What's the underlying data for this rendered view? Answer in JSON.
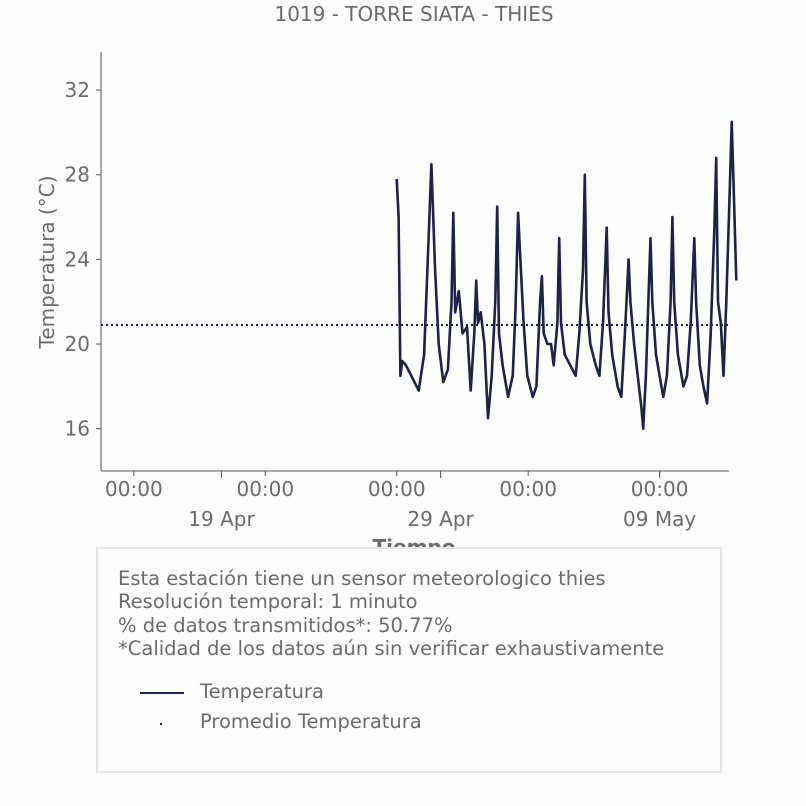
{
  "chart_data": {
    "type": "line",
    "title": "1019 - TORRE SIATA - THIES",
    "xlabel": "Tiempo",
    "ylabel": "Temperatura (°C)",
    "ylim": [
      14,
      33.8
    ],
    "yticks": [
      16,
      20,
      24,
      28,
      32
    ],
    "x_range_days": [
      "2018-04-13 12:00",
      "2018-05-12 04:00"
    ],
    "time_tick_labels": [
      "00:00",
      "00:00",
      "00:00",
      "00:00",
      "00:00"
    ],
    "time_tick_days": [
      "2018-04-15",
      "2018-04-21",
      "2018-04-27",
      "2018-05-03",
      "2018-05-09"
    ],
    "date_tick_labels": [
      "19 Apr",
      "29 Apr",
      "09 May"
    ],
    "date_tick_days": [
      "2018-04-19",
      "2018-04-29",
      "2018-05-09"
    ],
    "grid": false,
    "series": [
      {
        "name": "Temperatura",
        "color": "#1f2148",
        "style": "solid",
        "points": [
          [
            "2018-04-27 00:00",
            27.8
          ],
          [
            "2018-04-27 02:00",
            26.0
          ],
          [
            "2018-04-27 04:00",
            18.5
          ],
          [
            "2018-04-27 06:00",
            19.2
          ],
          [
            "2018-04-27 10:00",
            19.0
          ],
          [
            "2018-04-27 16:00",
            18.5
          ],
          [
            "2018-04-28 00:00",
            17.8
          ],
          [
            "2018-04-28 06:00",
            19.5
          ],
          [
            "2018-04-28 10:00",
            24.0
          ],
          [
            "2018-04-28 14:00",
            28.5
          ],
          [
            "2018-04-28 18:00",
            23.5
          ],
          [
            "2018-04-28 22:00",
            20.0
          ],
          [
            "2018-04-29 03:00",
            18.2
          ],
          [
            "2018-04-29 08:00",
            18.8
          ],
          [
            "2018-04-29 12:00",
            22.0
          ],
          [
            "2018-04-29 14:00",
            26.2
          ],
          [
            "2018-04-29 16:00",
            21.5
          ],
          [
            "2018-04-29 20:00",
            22.5
          ],
          [
            "2018-04-30 00:00",
            20.5
          ],
          [
            "2018-04-30 05:00",
            20.8
          ],
          [
            "2018-04-30 09:00",
            17.8
          ],
          [
            "2018-04-30 13:00",
            20.5
          ],
          [
            "2018-04-30 15:00",
            23.0
          ],
          [
            "2018-04-30 17:00",
            21.0
          ],
          [
            "2018-04-30 20:00",
            21.5
          ],
          [
            "2018-05-01 00:00",
            20.0
          ],
          [
            "2018-05-01 04:00",
            16.5
          ],
          [
            "2018-05-01 08:00",
            18.5
          ],
          [
            "2018-05-01 12:00",
            22.0
          ],
          [
            "2018-05-01 14:00",
            26.5
          ],
          [
            "2018-05-01 16:00",
            20.5
          ],
          [
            "2018-05-01 20:00",
            19.0
          ],
          [
            "2018-05-02 02:00",
            17.5
          ],
          [
            "2018-05-02 07:00",
            18.5
          ],
          [
            "2018-05-02 10:00",
            21.5
          ],
          [
            "2018-05-02 13:00",
            26.2
          ],
          [
            "2018-05-02 16:00",
            23.5
          ],
          [
            "2018-05-02 19:00",
            21.0
          ],
          [
            "2018-05-02 23:00",
            18.5
          ],
          [
            "2018-05-03 05:00",
            17.5
          ],
          [
            "2018-05-03 09:00",
            18.0
          ],
          [
            "2018-05-03 13:00",
            22.0
          ],
          [
            "2018-05-03 15:00",
            23.2
          ],
          [
            "2018-05-03 17:00",
            20.5
          ],
          [
            "2018-05-03 21:00",
            20.0
          ],
          [
            "2018-05-04 01:00",
            20.0
          ],
          [
            "2018-05-04 04:00",
            19.0
          ],
          [
            "2018-05-04 08:00",
            21.0
          ],
          [
            "2018-05-04 10:00",
            25.0
          ],
          [
            "2018-05-04 12:00",
            21.0
          ],
          [
            "2018-05-04 16:00",
            19.5
          ],
          [
            "2018-05-04 22:00",
            19.0
          ],
          [
            "2018-05-05 04:00",
            18.5
          ],
          [
            "2018-05-05 08:00",
            20.5
          ],
          [
            "2018-05-05 12:00",
            23.5
          ],
          [
            "2018-05-05 14:00",
            28.0
          ],
          [
            "2018-05-05 16:00",
            22.0
          ],
          [
            "2018-05-05 20:00",
            20.0
          ],
          [
            "2018-05-06 02:00",
            19.0
          ],
          [
            "2018-05-06 06:00",
            18.5
          ],
          [
            "2018-05-06 10:00",
            21.0
          ],
          [
            "2018-05-06 14:00",
            25.5
          ],
          [
            "2018-05-06 16:00",
            21.5
          ],
          [
            "2018-05-06 20:00",
            19.5
          ],
          [
            "2018-05-07 02:00",
            18.0
          ],
          [
            "2018-05-07 06:00",
            17.5
          ],
          [
            "2018-05-07 10:00",
            20.5
          ],
          [
            "2018-05-07 14:00",
            24.0
          ],
          [
            "2018-05-07 16:00",
            22.0
          ],
          [
            "2018-05-07 20:00",
            20.0
          ],
          [
            "2018-05-08 00:00",
            18.5
          ],
          [
            "2018-05-08 04:00",
            17.0
          ],
          [
            "2018-05-08 06:00",
            16.0
          ],
          [
            "2018-05-08 09:00",
            18.5
          ],
          [
            "2018-05-08 12:00",
            22.5
          ],
          [
            "2018-05-08 14:00",
            25.0
          ],
          [
            "2018-05-08 16:00",
            22.0
          ],
          [
            "2018-05-08 20:00",
            19.5
          ],
          [
            "2018-05-09 00:00",
            18.5
          ],
          [
            "2018-05-09 04:00",
            17.5
          ],
          [
            "2018-05-09 08:00",
            18.5
          ],
          [
            "2018-05-09 12:00",
            22.0
          ],
          [
            "2018-05-09 14:00",
            26.0
          ],
          [
            "2018-05-09 16:00",
            22.0
          ],
          [
            "2018-05-09 20:00",
            19.5
          ],
          [
            "2018-05-10 02:00",
            18.0
          ],
          [
            "2018-05-10 06:00",
            18.5
          ],
          [
            "2018-05-10 10:00",
            21.0
          ],
          [
            "2018-05-10 14:00",
            25.0
          ],
          [
            "2018-05-10 16:00",
            22.0
          ],
          [
            "2018-05-10 20:00",
            19.0
          ],
          [
            "2018-05-11 00:00",
            18.0
          ],
          [
            "2018-05-11 04:00",
            17.2
          ],
          [
            "2018-05-11 08:00",
            20.5
          ],
          [
            "2018-05-11 12:00",
            25.5
          ],
          [
            "2018-05-11 14:00",
            28.8
          ],
          [
            "2018-05-11 16:00",
            22.0
          ],
          [
            "2018-05-11 19:00",
            21.0
          ],
          [
            "2018-05-11 22:00",
            18.5
          ],
          [
            "2018-05-12 01:00",
            22.0
          ],
          [
            "2018-05-12 05:00",
            27.5
          ],
          [
            "2018-05-12 07:00",
            30.5
          ],
          [
            "2018-05-12 09:00",
            27.5
          ],
          [
            "2018-05-12 12:00",
            23.0
          ]
        ]
      },
      {
        "name": "Promedio Temperatura",
        "color": "#1f2148",
        "style": "dotted",
        "value": 20.9
      }
    ]
  },
  "info": {
    "lines": [
      "Esta estación tiene un sensor meteorologico thies",
      "Resolución temporal: 1 minuto",
      "% de datos transmitidos*: 50.77%",
      "*Calidad de los datos aún sin verificar exhaustivamente"
    ]
  },
  "legend": {
    "items": [
      "Temperatura",
      "Promedio Temperatura"
    ]
  }
}
